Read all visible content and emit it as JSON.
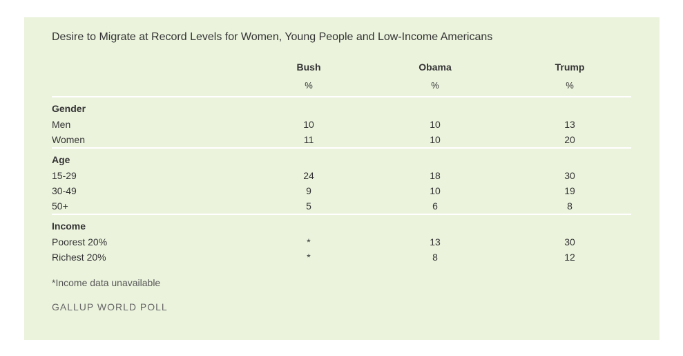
{
  "chart_data": {
    "type": "table",
    "title": "Desire to Migrate at Record Levels for Women, Young People and Low-Income Americans",
    "columns": [
      "Bush",
      "Obama",
      "Trump"
    ],
    "unit": "%",
    "groups": [
      {
        "name": "Gender",
        "rows": [
          {
            "label": "Men",
            "values": [
              "10",
              "10",
              "13"
            ]
          },
          {
            "label": "Women",
            "values": [
              "11",
              "10",
              "20"
            ]
          }
        ]
      },
      {
        "name": "Age",
        "rows": [
          {
            "label": "15-29",
            "values": [
              "24",
              "18",
              "30"
            ]
          },
          {
            "label": "30-49",
            "values": [
              "9",
              "10",
              "19"
            ]
          },
          {
            "label": "50+",
            "values": [
              "5",
              "6",
              "8"
            ]
          }
        ]
      },
      {
        "name": "Income",
        "rows": [
          {
            "label": "Poorest 20%",
            "values": [
              "*",
              "13",
              "30"
            ]
          },
          {
            "label": "Richest 20%",
            "values": [
              "*",
              "8",
              "12"
            ]
          }
        ]
      }
    ],
    "footnote": "*Income data unavailable",
    "source": "GALLUP WORLD POLL"
  }
}
